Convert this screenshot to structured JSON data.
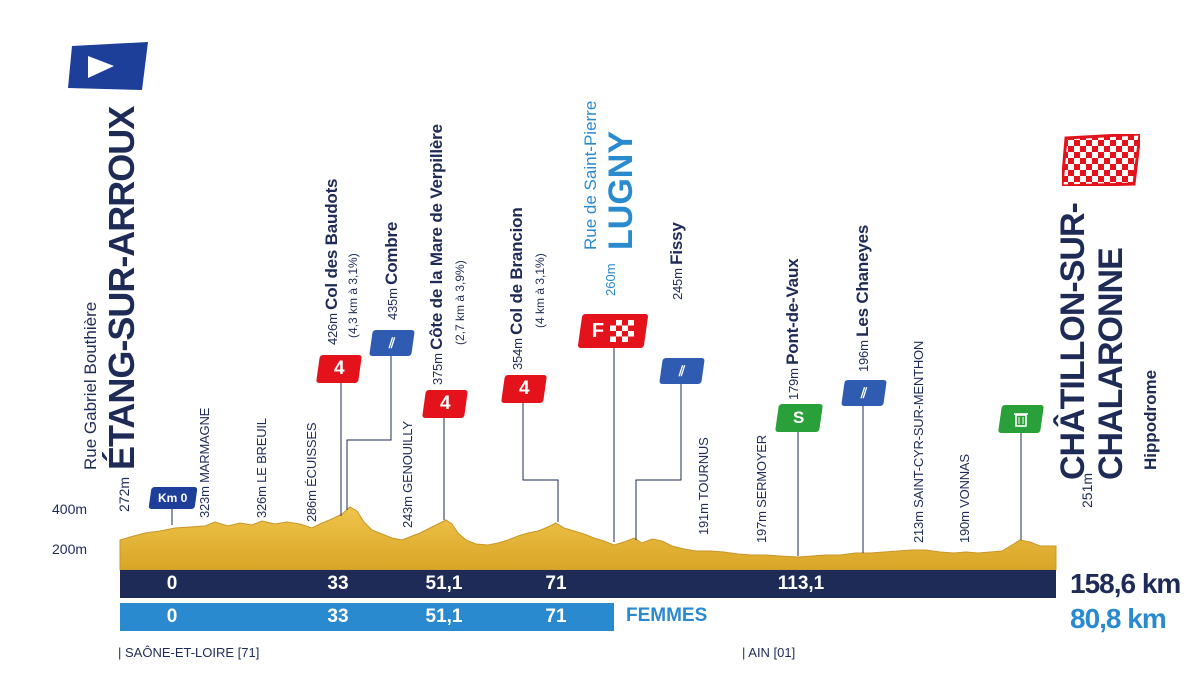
{
  "start": {
    "street": "Rue Gabriel Bouthière",
    "town": "ÉTANG-SUR-ARROUX",
    "altitude": "272m",
    "km0": "Km 0"
  },
  "finish": {
    "town_line1": "CHÂTILLON-SUR-",
    "town_line2": "CHALARONNE",
    "venue": "Hippodrome",
    "altitude": "251m"
  },
  "intermediate_finish": {
    "street": "Rue de Saint-Pierre",
    "town": "LUGNY",
    "altitude": "260m",
    "marker": "F"
  },
  "altitude_axis": [
    "400m",
    "200m"
  ],
  "places": [
    {
      "alt": "323m",
      "name": "MARMAGNE"
    },
    {
      "alt": "326m",
      "name": "LE BREUIL"
    },
    {
      "alt": "286m",
      "name": "ÉCUISSES"
    },
    {
      "alt": "426m",
      "name": "Col des Baudots",
      "detail": "(4,3 km à 3,1%)"
    },
    {
      "alt": "435m",
      "name": "Combre"
    },
    {
      "alt": "243m",
      "name": "GENOUILLY"
    },
    {
      "alt": "375m",
      "name": "Côte de la Mare de Verpillère",
      "detail": "(2,7 km à 3,9%)"
    },
    {
      "alt": "354m",
      "name": "Col de Brancion",
      "detail": "(4 km à 3,1%)"
    },
    {
      "alt": "245m",
      "name": "Fissy"
    },
    {
      "alt": "191m",
      "name": "TOURNUS"
    },
    {
      "alt": "197m",
      "name": "SERMOYER"
    },
    {
      "alt": "179m",
      "name": "Pont-de-Vaux"
    },
    {
      "alt": "196m",
      "name": "Les Chaneyes"
    },
    {
      "alt": "213m",
      "name": "SAINT-CYR-SUR-MENTHON"
    },
    {
      "alt": "190m",
      "name": "VONNAS"
    }
  ],
  "markers": {
    "climb_category": "4",
    "sprint": "S"
  },
  "distances": {
    "men": [
      "0",
      "33",
      "51,1",
      "71",
      "113,1"
    ],
    "men_total": "158,6 km",
    "women": [
      "0",
      "33",
      "51,1",
      "71"
    ],
    "women_label": "FEMMES",
    "women_total": "80,8 km"
  },
  "regions": [
    "| SAÔNE-ET-LOIRE [71]",
    "| AIN [01]"
  ],
  "colors": {
    "navy": "#1e2b56",
    "blue": "#2a8ad0",
    "climb_red": "#e3121b",
    "feed_blue": "#2f5bb1",
    "sprint_green": "#2aa03a",
    "terrain": "#e5b83a"
  },
  "chart_data": {
    "type": "area",
    "xlabel": "",
    "ylabel": "",
    "x_km": [
      0,
      8,
      18,
      28,
      33,
      38,
      44,
      51.1,
      56,
      65,
      71,
      80,
      90,
      100,
      113.1,
      125,
      140,
      152,
      158.6
    ],
    "y_m": [
      272,
      300,
      323,
      326,
      426,
      340,
      243,
      375,
      260,
      300,
      354,
      245,
      210,
      191,
      179,
      196,
      213,
      190,
      251
    ],
    "ylim": [
      0,
      500
    ]
  }
}
